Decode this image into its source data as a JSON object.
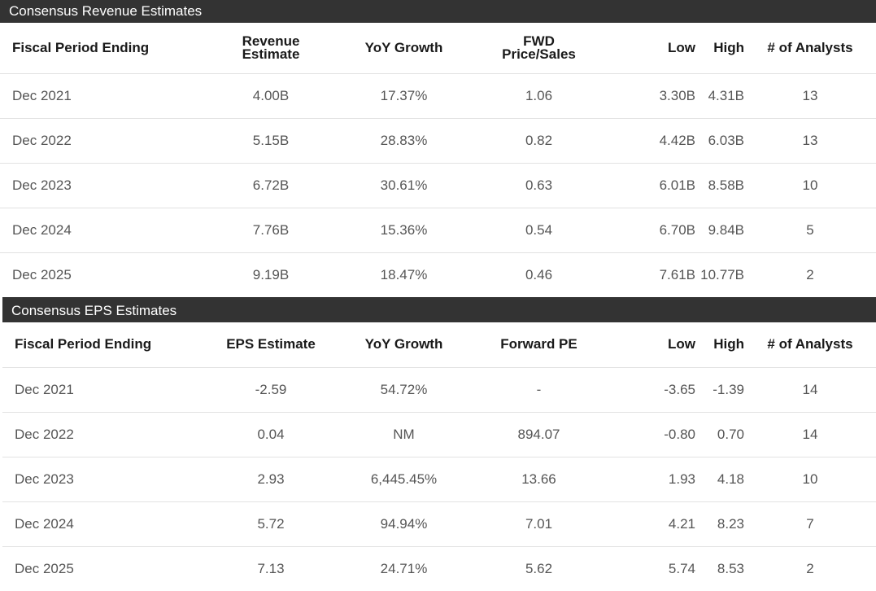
{
  "revenue": {
    "title": "Consensus Revenue Estimates",
    "columns": {
      "period": "Fiscal Period Ending",
      "estimate_line1": "Revenue",
      "estimate_line2": "Estimate",
      "growth": "YoY Growth",
      "ratio_line1": "FWD",
      "ratio_line2": "Price/Sales",
      "low": "Low",
      "high": "High",
      "analysts": "# of Analysts"
    },
    "rows": [
      {
        "period": "Dec 2021",
        "estimate": "4.00B",
        "growth": "17.37%",
        "ratio": "1.06",
        "low": "3.30B",
        "high": "4.31B",
        "analysts": "13"
      },
      {
        "period": "Dec 2022",
        "estimate": "5.15B",
        "growth": "28.83%",
        "ratio": "0.82",
        "low": "4.42B",
        "high": "6.03B",
        "analysts": "13"
      },
      {
        "period": "Dec 2023",
        "estimate": "6.72B",
        "growth": "30.61%",
        "ratio": "0.63",
        "low": "6.01B",
        "high": "8.58B",
        "analysts": "10"
      },
      {
        "period": "Dec 2024",
        "estimate": "7.76B",
        "growth": "15.36%",
        "ratio": "0.54",
        "low": "6.70B",
        "high": "9.84B",
        "analysts": "5"
      },
      {
        "period": "Dec 2025",
        "estimate": "9.19B",
        "growth": "18.47%",
        "ratio": "0.46",
        "low": "7.61B",
        "high": "10.77B",
        "analysts": "2"
      }
    ]
  },
  "eps": {
    "title": "Consensus EPS Estimates",
    "columns": {
      "period": "Fiscal Period Ending",
      "estimate": "EPS Estimate",
      "growth": "YoY Growth",
      "ratio": "Forward PE",
      "low": "Low",
      "high": "High",
      "analysts": "# of Analysts"
    },
    "rows": [
      {
        "period": "Dec 2021",
        "estimate": "-2.59",
        "growth": "54.72%",
        "ratio": "-",
        "low": "-3.65",
        "high": "-1.39",
        "analysts": "14"
      },
      {
        "period": "Dec 2022",
        "estimate": "0.04",
        "growth": "NM",
        "ratio": "894.07",
        "low": "-0.80",
        "high": "0.70",
        "analysts": "14"
      },
      {
        "period": "Dec 2023",
        "estimate": "2.93",
        "growth": "6,445.45%",
        "ratio": "13.66",
        "low": "1.93",
        "high": "4.18",
        "analysts": "10"
      },
      {
        "period": "Dec 2024",
        "estimate": "5.72",
        "growth": "94.94%",
        "ratio": "7.01",
        "low": "4.21",
        "high": "8.23",
        "analysts": "7"
      },
      {
        "period": "Dec 2025",
        "estimate": "7.13",
        "growth": "24.71%",
        "ratio": "5.62",
        "low": "5.74",
        "high": "8.53",
        "analysts": "2"
      }
    ]
  }
}
